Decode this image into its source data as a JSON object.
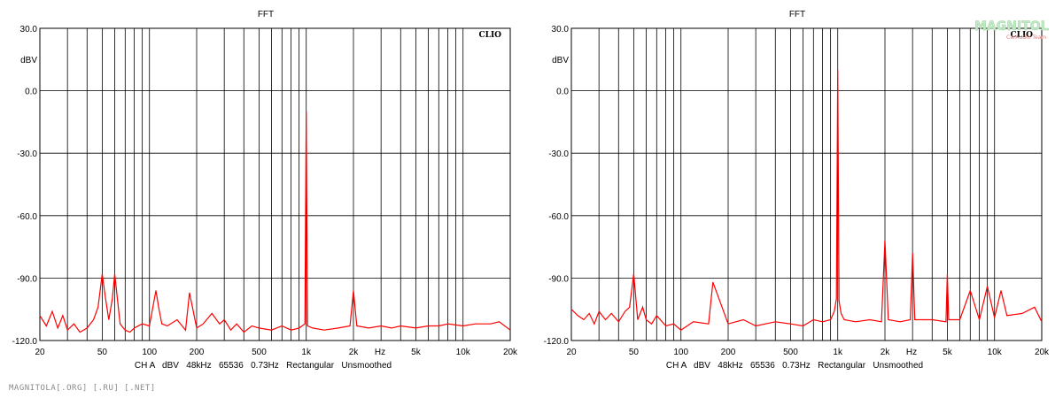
{
  "chart_data": [
    {
      "type": "line",
      "title": "FFT",
      "brand": "CLIO",
      "ylabel": "dBV",
      "xlabel": "Hz",
      "x_scale": "log",
      "xlim": [
        20,
        20000
      ],
      "ylim": [
        -120,
        30
      ],
      "y_ticks": [
        "30.0",
        "0.0",
        "-30.0",
        "-60.0",
        "-90.0",
        "-120.0"
      ],
      "x_ticks": [
        "20",
        "50",
        "100",
        "200",
        "500",
        "1k",
        "2k",
        "5k",
        "10k",
        "20k"
      ],
      "grid": true,
      "footer": "CH A   dBV   48kHz   65536   0.73Hz   Rectangular   Unsmoothed",
      "line_color": "#ff0000",
      "series": [
        {
          "x": [
            20,
            22,
            24,
            26,
            28,
            30,
            33,
            36,
            40,
            44,
            47,
            50,
            52,
            55,
            58,
            60,
            65,
            70,
            75,
            80,
            90,
            100,
            110,
            115,
            120,
            130,
            150,
            170,
            180,
            200,
            220,
            250,
            280,
            300,
            330,
            360,
            400,
            450,
            500,
            600,
            700,
            800,
            900,
            980,
            1000,
            1020,
            1100,
            1300,
            1600,
            1900,
            2000,
            2100,
            2500,
            3000,
            3500,
            4000,
            5000,
            6000,
            7000,
            8000,
            10000,
            12000,
            15000,
            17000,
            20000
          ],
          "y": [
            -108,
            -113,
            -106,
            -114,
            -108,
            -115,
            -112,
            -116,
            -114,
            -110,
            -104,
            -88,
            -98,
            -110,
            -100,
            -88,
            -112,
            -115,
            -116,
            -114,
            -112,
            -113,
            -96,
            -105,
            -112,
            -113,
            -110,
            -115,
            -97,
            -114,
            -112,
            -107,
            -112,
            -110,
            -115,
            -112,
            -116,
            -113,
            -114,
            -115,
            -113,
            -115,
            -114,
            -112,
            -10,
            -113,
            -114,
            -115,
            -114,
            -113,
            -96,
            -113,
            -114,
            -113,
            -114,
            -113,
            -114,
            -113,
            -113,
            -112,
            -113,
            -112,
            -112,
            -111,
            -115
          ]
        }
      ]
    },
    {
      "type": "line",
      "title": "FFT",
      "brand": "CLIO",
      "ylabel": "dBV",
      "xlabel": "Hz",
      "x_scale": "log",
      "xlim": [
        20,
        20000
      ],
      "ylim": [
        -120,
        30
      ],
      "y_ticks": [
        "30.0",
        "0.0",
        "-30.0",
        "-60.0",
        "-90.0",
        "-120.0"
      ],
      "x_ticks": [
        "20",
        "50",
        "100",
        "200",
        "500",
        "1k",
        "2k",
        "5k",
        "10k",
        "20k"
      ],
      "grid": true,
      "footer": "CH A   dBV   48kHz   65536   0.73Hz   Rectangular   Unsmoothed",
      "line_color": "#ff0000",
      "series": [
        {
          "x": [
            20,
            22,
            24,
            26,
            28,
            30,
            33,
            36,
            40,
            44,
            47,
            50,
            53,
            57,
            60,
            65,
            70,
            80,
            90,
            100,
            120,
            150,
            160,
            200,
            250,
            300,
            400,
            500,
            600,
            700,
            800,
            900,
            950,
            980,
            1000,
            1020,
            1050,
            1100,
            1300,
            1600,
            1900,
            2000,
            2100,
            2500,
            2900,
            3000,
            3100,
            4000,
            4900,
            5000,
            5100,
            6000,
            7000,
            8000,
            9000,
            10000,
            11000,
            12000,
            15000,
            18000,
            20000
          ],
          "y": [
            -105,
            -108,
            -110,
            -107,
            -112,
            -106,
            -110,
            -107,
            -111,
            -106,
            -104,
            -88,
            -110,
            -104,
            -110,
            -112,
            -108,
            -113,
            -112,
            -115,
            -111,
            -112,
            -92,
            -112,
            -110,
            -113,
            -111,
            -112,
            -113,
            -110,
            -111,
            -110,
            -106,
            -100,
            10,
            -101,
            -107,
            -110,
            -111,
            -110,
            -111,
            -72,
            -110,
            -111,
            -110,
            -78,
            -110,
            -110,
            -111,
            -88,
            -110,
            -110,
            -96,
            -110,
            -94,
            -109,
            -96,
            -108,
            -107,
            -104,
            -111
          ]
        }
      ]
    }
  ],
  "logo": {
    "text": "MAGNITOLA",
    "subtext": "CarAudio Team",
    "color": "#9bd4a0"
  },
  "watermark": "MAGNITOLA[.ORG] [.RU] [.NET]"
}
